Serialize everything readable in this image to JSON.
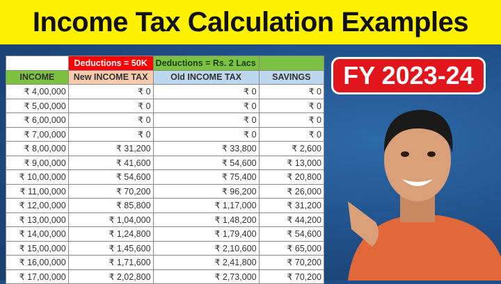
{
  "title": "Income Tax Calculation Examples",
  "badge": "FY 2023-24",
  "table": {
    "group_headers": [
      "",
      "Deductions = 50K",
      "Deductions = Rs. 2 Lacs",
      ""
    ],
    "headers": [
      "INCOME",
      "New INCOME TAX",
      "Old INCOME TAX",
      "SAVINGS"
    ],
    "rows": [
      [
        "₹ 4,00,000",
        "₹ 0",
        "₹ 0",
        "₹ 0"
      ],
      [
        "₹ 5,00,000",
        "₹ 0",
        "₹ 0",
        "₹ 0"
      ],
      [
        "₹ 6,00,000",
        "₹ 0",
        "₹ 0",
        "₹ 0"
      ],
      [
        "₹ 7,00,000",
        "₹ 0",
        "₹ 0",
        "₹ 0"
      ],
      [
        "₹ 8,00,000",
        "₹ 31,200",
        "₹ 33,800",
        "₹ 2,600"
      ],
      [
        "₹ 9,00,000",
        "₹ 41,600",
        "₹ 54,600",
        "₹ 13,000"
      ],
      [
        "₹ 10,00,000",
        "₹ 54,600",
        "₹ 75,400",
        "₹ 20,800"
      ],
      [
        "₹ 11,00,000",
        "₹ 70,200",
        "₹ 96,200",
        "₹ 26,000"
      ],
      [
        "₹ 12,00,000",
        "₹ 85,800",
        "₹ 1,17,000",
        "₹ 31,200"
      ],
      [
        "₹ 13,00,000",
        "₹ 1,04,000",
        "₹ 1,48,200",
        "₹ 44,200"
      ],
      [
        "₹ 14,00,000",
        "₹ 1,24,800",
        "₹ 1,79,400",
        "₹ 54,600"
      ],
      [
        "₹ 15,00,000",
        "₹ 1,45,600",
        "₹ 2,10,600",
        "₹ 65,000"
      ],
      [
        "₹ 16,00,000",
        "₹ 1,71,600",
        "₹ 2,41,800",
        "₹ 70,200"
      ],
      [
        "₹ 17,00,000",
        "₹ 2,02,800",
        "₹ 2,73,000",
        "₹ 70,200"
      ]
    ]
  },
  "colors": {
    "title_bg": "#fff200",
    "background": "#1f4e86",
    "badge": "#e0161c",
    "green": "#7cc242",
    "red": "#ff0000",
    "peach": "#f8cbad",
    "lightblue": "#bdd7ee"
  }
}
